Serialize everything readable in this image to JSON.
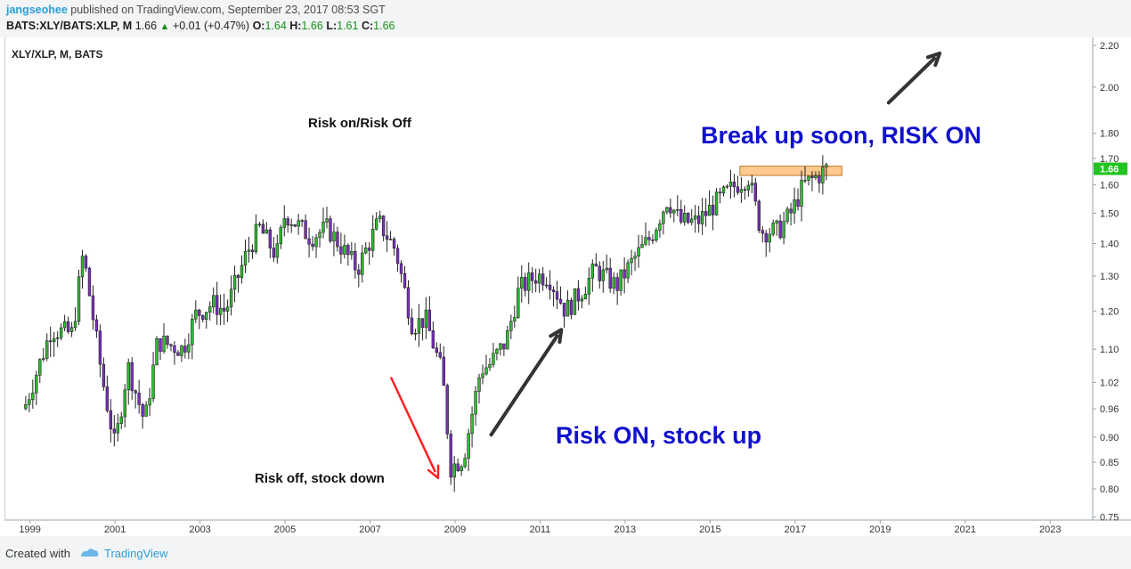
{
  "header": {
    "author": "jangseohee",
    "published_text": "published on TradingView.com, September 23, 2017 08:53 SGT",
    "symbol": "BATS:XLY/BATS:XLP, M",
    "last": "1.66",
    "change_icon": "up-triangle-icon",
    "change": "+0.01 (+0.47%)",
    "o_label": "O:",
    "o_value": "1.64",
    "h_label": "H:",
    "h_value": "1.66",
    "l_label": "L:",
    "l_value": "1.61",
    "c_label": "C:",
    "c_value": "1.66"
  },
  "footer": {
    "created_with": "Created with",
    "brand": "TradingView",
    "logo_icon": "tradingview-logo-icon"
  },
  "colors": {
    "up_candle": "#2fbf2f",
    "down_candle": "#7b2fbf",
    "annotation_blue": "#1111cc",
    "red_arrow": "#ff2222",
    "dark_arrow": "#333333",
    "resistance_box": "#ffc98f",
    "price_label_bg": "#21c421"
  },
  "chart_data": {
    "type": "candlestick",
    "legend_text": "XLY/XLP, M, BATS",
    "y_scale": "log",
    "ylim": [
      0.745,
      2.24
    ],
    "y_ticks": [
      "0.75",
      "0.80",
      "0.85",
      "0.90",
      "0.96",
      "1.02",
      "1.10",
      "1.20",
      "1.30",
      "1.40",
      "1.50",
      "1.60",
      "1.70",
      "1.80",
      "2.00",
      "2.20"
    ],
    "x_ticks": [
      "1999",
      "2001",
      "2003",
      "2005",
      "2007",
      "2009",
      "2011",
      "2013",
      "2015",
      "2017",
      "2019",
      "2021",
      "2023"
    ],
    "xlim": [
      1998.4,
      2024.0
    ],
    "grid": false,
    "current_price_label": "1.66",
    "closes": [
      {
        "t": 1998.9,
        "v": 0.97
      },
      {
        "t": 1999.5,
        "v": 1.15
      },
      {
        "t": 2000.0,
        "v": 1.14
      },
      {
        "t": 2000.25,
        "v": 1.37
      },
      {
        "t": 2000.7,
        "v": 1.03
      },
      {
        "t": 2001.0,
        "v": 0.88
      },
      {
        "t": 2001.3,
        "v": 1.06
      },
      {
        "t": 2001.7,
        "v": 0.93
      },
      {
        "t": 2002.0,
        "v": 1.12
      },
      {
        "t": 2002.6,
        "v": 1.1
      },
      {
        "t": 2002.9,
        "v": 1.19
      },
      {
        "t": 2003.3,
        "v": 1.22
      },
      {
        "t": 2003.6,
        "v": 1.2
      },
      {
        "t": 2004.1,
        "v": 1.37
      },
      {
        "t": 2004.4,
        "v": 1.45
      },
      {
        "t": 2004.8,
        "v": 1.36
      },
      {
        "t": 2005.0,
        "v": 1.5
      },
      {
        "t": 2005.6,
        "v": 1.42
      },
      {
        "t": 2006.0,
        "v": 1.45
      },
      {
        "t": 2006.7,
        "v": 1.32
      },
      {
        "t": 2007.2,
        "v": 1.47
      },
      {
        "t": 2007.6,
        "v": 1.38
      },
      {
        "t": 2008.0,
        "v": 1.16
      },
      {
        "t": 2008.3,
        "v": 1.18
      },
      {
        "t": 2008.7,
        "v": 1.04
      },
      {
        "t": 2008.9,
        "v": 0.84
      },
      {
        "t": 2009.2,
        "v": 0.86
      },
      {
        "t": 2009.6,
        "v": 1.05
      },
      {
        "t": 2009.8,
        "v": 1.06
      },
      {
        "t": 2010.2,
        "v": 1.12
      },
      {
        "t": 2010.5,
        "v": 1.26
      },
      {
        "t": 2010.9,
        "v": 1.3
      },
      {
        "t": 2011.2,
        "v": 1.3
      },
      {
        "t": 2011.6,
        "v": 1.2
      },
      {
        "t": 2012.0,
        "v": 1.26
      },
      {
        "t": 2012.3,
        "v": 1.32
      },
      {
        "t": 2012.8,
        "v": 1.27
      },
      {
        "t": 2013.2,
        "v": 1.35
      },
      {
        "t": 2013.6,
        "v": 1.42
      },
      {
        "t": 2014.0,
        "v": 1.55
      },
      {
        "t": 2014.3,
        "v": 1.47
      },
      {
        "t": 2014.7,
        "v": 1.47
      },
      {
        "t": 2015.1,
        "v": 1.53
      },
      {
        "t": 2015.6,
        "v": 1.6
      },
      {
        "t": 2015.9,
        "v": 1.63
      },
      {
        "t": 2016.2,
        "v": 1.44
      },
      {
        "t": 2016.6,
        "v": 1.44
      },
      {
        "t": 2016.9,
        "v": 1.5
      },
      {
        "t": 2017.2,
        "v": 1.6
      },
      {
        "t": 2017.6,
        "v": 1.64
      },
      {
        "t": 2017.7,
        "v": 1.66
      }
    ],
    "resistance_zone": {
      "x_start": 2015.7,
      "x_end": 2018.1,
      "y_low": 1.635,
      "y_high": 1.67
    },
    "annotations": {
      "risk_on_off": "Risk on/Risk Off",
      "risk_off": "Risk off, stock down",
      "risk_on_stock_up": "Risk ON, stock up",
      "break_up": "Break up soon, RISK ON"
    },
    "arrows": [
      {
        "name": "red-down-arrow",
        "from": [
          2007.5,
          1.03
        ],
        "to": [
          2008.6,
          0.82
        ],
        "color": "red_arrow"
      },
      {
        "name": "up-arrow-2009",
        "from": [
          2009.85,
          0.905
        ],
        "to": [
          2011.5,
          1.15
        ],
        "color": "dark_arrow"
      },
      {
        "name": "up-arrow-2017",
        "from": [
          2019.2,
          1.93
        ],
        "to": [
          2020.4,
          2.16
        ],
        "color": "dark_arrow"
      }
    ]
  }
}
